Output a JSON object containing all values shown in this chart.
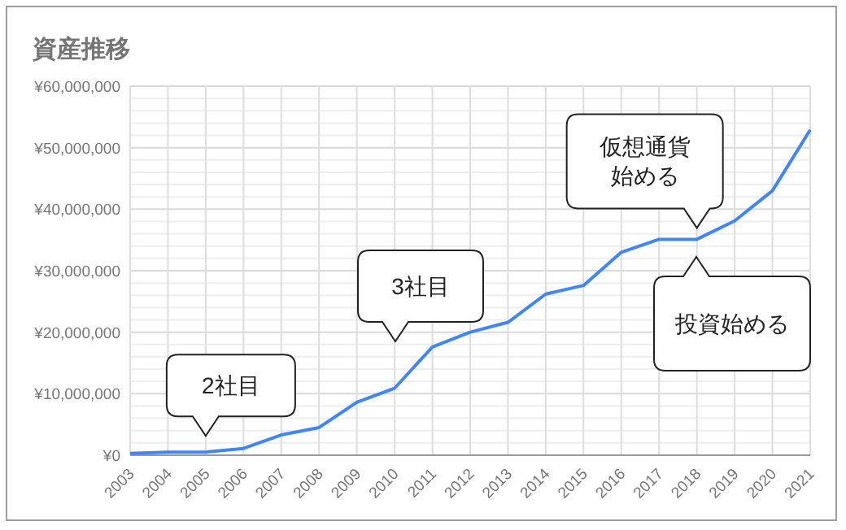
{
  "chart_data": {
    "type": "line",
    "title": "資産推移",
    "categories": [
      "2003",
      "2004",
      "2005",
      "2006",
      "2007",
      "2008",
      "2009",
      "2010",
      "2011",
      "2012",
      "2013",
      "2014",
      "2015",
      "2016",
      "2017",
      "2018",
      "2019",
      "2020",
      "2021"
    ],
    "series": [
      {
        "color": "#4285f4",
        "values": [
          300000,
          500000,
          500000,
          1100000,
          3300000,
          4500000,
          8600000,
          10900000,
          17600000,
          20000000,
          21600000,
          26200000,
          27600000,
          33000000,
          35100000,
          35100000,
          38100000,
          43000000,
          52900000
        ]
      }
    ],
    "ylim": [
      0,
      60000000
    ],
    "yticks": [
      {
        "value": 0,
        "label": "¥0"
      },
      {
        "value": 10000000,
        "label": "¥10,000,000"
      },
      {
        "value": 20000000,
        "label": "¥20,000,000"
      },
      {
        "value": 30000000,
        "label": "¥30,000,000"
      },
      {
        "value": 40000000,
        "label": "¥40,000,000"
      },
      {
        "value": 50000000,
        "label": "¥50,000,000"
      },
      {
        "value": 60000000,
        "label": "¥60,000,000"
      }
    ],
    "grid": true,
    "marker": "none",
    "line_style": "solid",
    "annotations": [
      {
        "text": "2社目",
        "x": "2005",
        "y": 500000
      },
      "3社目",
      {
        "text": "仮想通貨始める",
        "x": "2018",
        "y": 35100000
      },
      "投資始める"
    ]
  }
}
